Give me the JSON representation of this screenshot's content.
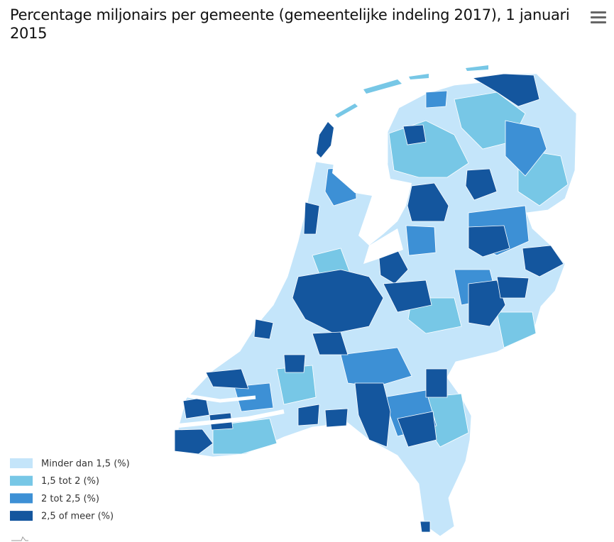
{
  "title": "Percentage miljonairs per gemeente (gemeentelijke indeling 2017), 1 januari 2015",
  "legend": [
    {
      "label": "Minder dan 1,5 (%)",
      "color": "#c4e5fa"
    },
    {
      "label": "1,5 tot 2 (%)",
      "color": "#77c7e6"
    },
    {
      "label": "2 tot 2,5 (%)",
      "color": "#3d90d5"
    },
    {
      "label": "2,5 of meer (%)",
      "color": "#14569e"
    }
  ]
}
